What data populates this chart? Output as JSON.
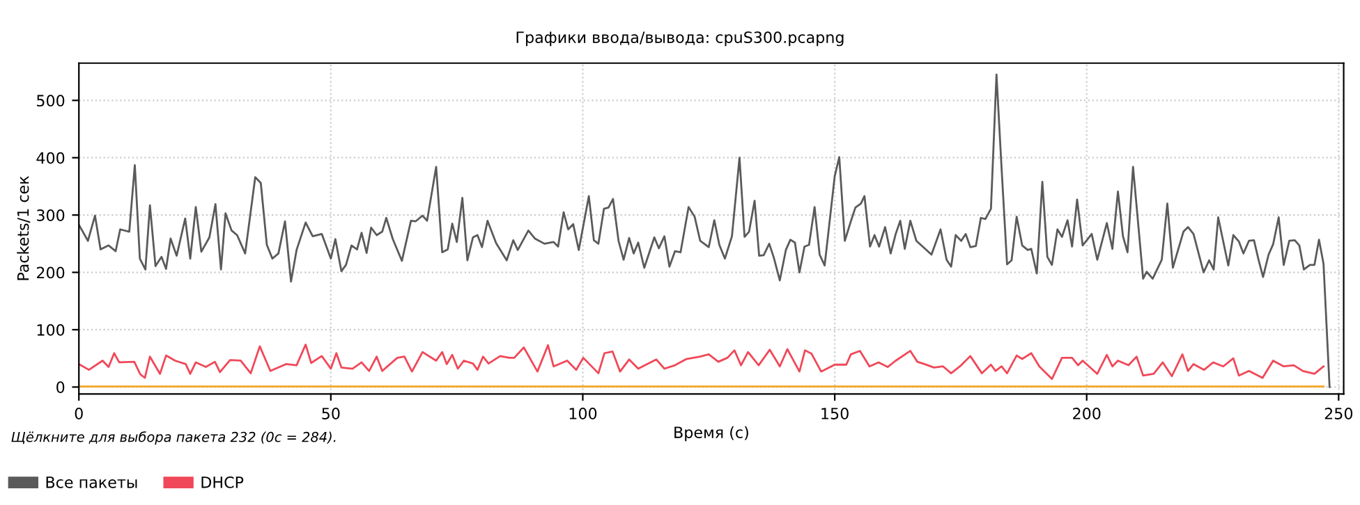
{
  "chart_data": {
    "type": "line",
    "title": "Графики ввода/вывода: cpuS300.pcapng",
    "xlabel": "Время (с)",
    "ylabel": "Packets/1 сек",
    "annotations": [
      "Щёлкните для выбора пакета 232 (0с = 284)."
    ],
    "xlim": [
      0,
      251
    ],
    "ylim": [
      -12,
      565
    ],
    "xticks": [
      0,
      50,
      100,
      150,
      200,
      250
    ],
    "yticks": [
      0,
      100,
      200,
      300,
      400,
      500
    ],
    "grid": true,
    "legend": "bottom",
    "line_style": "solid",
    "marker": "none",
    "series": [
      {
        "name": "Все пакеты",
        "color": "#5a5a5a",
        "x": [
          0,
          1.8,
          3.2,
          4.3,
          5.9,
          7.3,
          8.2,
          10,
          11.1,
          12.1,
          13.2,
          14.1,
          15.2,
          16.4,
          17.3,
          18.2,
          19.4,
          21.1,
          22.1,
          23.2,
          24.3,
          25.9,
          27.1,
          28.2,
          29.1,
          30.3,
          31.4,
          33,
          35,
          36.1,
          37.3,
          38.4,
          39.6,
          40.9,
          42.1,
          43.2,
          45,
          46.4,
          48.2,
          50,
          50.9,
          52.1,
          53,
          54.1,
          55.2,
          56.1,
          57.1,
          58,
          59.1,
          60.2,
          61,
          62.3,
          64.1,
          65.9,
          66.8,
          68.2,
          69.1,
          70.9,
          72.1,
          73.2,
          74.1,
          75,
          76.1,
          77.1,
          78.2,
          79.1,
          80,
          81.1,
          82.8,
          84.9,
          86.2,
          87.1,
          89.2,
          90.5,
          92.4,
          94.2,
          95.1,
          96.2,
          97.1,
          98.1,
          99.2,
          101.2,
          102.2,
          103.1,
          104.2,
          105.1,
          106,
          107.1,
          108.1,
          109.2,
          110.1,
          111,
          112.2,
          114.2,
          115.1,
          116.2,
          117.2,
          118.3,
          119.4,
          121,
          122.2,
          123.3,
          125,
          126.1,
          127.1,
          128.2,
          129.6,
          131.1,
          132.1,
          133,
          134.1,
          135,
          135.9,
          137,
          137.9,
          139.1,
          140.3,
          141.2,
          142.1,
          143,
          144,
          144.9,
          146,
          147,
          148,
          150,
          150.9,
          152,
          153.2,
          154.1,
          155.2,
          155.9,
          157,
          157.9,
          158.8,
          160,
          161.1,
          162.1,
          163,
          163.9,
          165,
          166.2,
          169.2,
          171,
          172.2,
          173.1,
          174,
          175.1,
          176,
          176.9,
          178,
          179,
          179.9,
          181,
          182.1,
          183.1,
          184.2,
          185.1,
          186.1,
          187.2,
          188.3,
          189,
          190.1,
          191.2,
          192.2,
          193.1,
          194.2,
          195.1,
          196.2,
          197.1,
          198.1,
          199.2,
          201,
          202.1,
          204,
          205.1,
          206.2,
          207.2,
          208.1,
          209.2,
          211.2,
          211.9,
          213.1,
          214.9,
          216,
          217.1,
          219.2,
          220.1,
          221.2,
          223.2,
          224.3,
          225.2,
          226.1,
          228.1,
          229.1,
          230.2,
          231.1,
          232.2,
          233.2,
          234.1,
          235,
          236.1,
          237,
          238.1,
          239.1,
          240.2,
          241.3,
          242.2,
          243.1,
          244.3,
          245.2,
          246.1,
          247,
          248.2
        ],
        "values": [
          283,
          255,
          299,
          240,
          247,
          237,
          275,
          271,
          387,
          224,
          205,
          317,
          211,
          227,
          206,
          259,
          229,
          294,
          224,
          314,
          236,
          261,
          319,
          205,
          303,
          273,
          265,
          233,
          366,
          356,
          248,
          224,
          233,
          289,
          184,
          239,
          287,
          263,
          267,
          224,
          258,
          202,
          213,
          247,
          240,
          269,
          234,
          278,
          265,
          271,
          295,
          258,
          220,
          290,
          289,
          299,
          290,
          384,
          235,
          240,
          285,
          253,
          330,
          221,
          261,
          265,
          244,
          290,
          251,
          221,
          256,
          239,
          273,
          259,
          250,
          253,
          245,
          305,
          275,
          284,
          239,
          333,
          256,
          250,
          311,
          313,
          328,
          255,
          222,
          260,
          233,
          252,
          208,
          261,
          242,
          263,
          210,
          237,
          235,
          314,
          297,
          255,
          244,
          291,
          248,
          224,
          263,
          400,
          262,
          271,
          325,
          229,
          230,
          250,
          226,
          186,
          239,
          257,
          252,
          200,
          245,
          248,
          314,
          231,
          212,
          368,
          401,
          255,
          289,
          313,
          320,
          333,
          245,
          265,
          245,
          279,
          233,
          267,
          290,
          241,
          290,
          255,
          231,
          275,
          222,
          210,
          265,
          255,
          267,
          244,
          246,
          295,
          293,
          311,
          545,
          383,
          214,
          221,
          297,
          247,
          239,
          241,
          198,
          358,
          227,
          213,
          275,
          262,
          291,
          245,
          327,
          247,
          267,
          222,
          286,
          241,
          341,
          263,
          235,
          384,
          189,
          201,
          189,
          222,
          320,
          208,
          271,
          279,
          267,
          200,
          221,
          205,
          296,
          212,
          265,
          254,
          233,
          255,
          256,
          222,
          192,
          231,
          249,
          296,
          213,
          255,
          256,
          247,
          205,
          213,
          213,
          257,
          215,
          0
        ]
      },
      {
        "name": "DHCP",
        "color": "#f04858",
        "x": [
          0,
          2,
          4.7,
          5.9,
          7,
          8,
          11,
          12.2,
          13.1,
          14.1,
          16.1,
          17.3,
          19.1,
          21.2,
          22.1,
          23.2,
          25.2,
          27,
          28,
          30,
          32.1,
          34.1,
          35.9,
          38,
          41.1,
          43.2,
          45,
          46.1,
          48.2,
          50,
          51.1,
          52.1,
          54.3,
          56.1,
          57.6,
          59.1,
          60.2,
          63.2,
          64.6,
          66.1,
          68.2,
          70.9,
          72.1,
          73,
          74.1,
          75.2,
          76.4,
          78.2,
          79.1,
          80.2,
          81.3,
          83.6,
          85.4,
          86.4,
          88.3,
          91,
          93.1,
          94.2,
          96.9,
          98.7,
          100.1,
          103.1,
          104.3,
          105.9,
          107.4,
          109.2,
          111,
          114.6,
          116.2,
          118.3,
          120.6,
          123.3,
          125,
          126.9,
          128.7,
          130.1,
          131.4,
          132.8,
          134.9,
          137.1,
          139.1,
          140.6,
          143,
          144.1,
          145.4,
          147.3,
          150,
          152.3,
          153.2,
          155,
          156.9,
          158.7,
          160.5,
          162.1,
          165,
          166.4,
          167.8,
          169.7,
          171.5,
          173.1,
          175.1,
          176.9,
          179.2,
          181,
          181.9,
          183.1,
          184.2,
          186.1,
          187.2,
          189,
          190.6,
          193.1,
          195.1,
          197.1,
          198.3,
          199.2,
          202.1,
          204,
          205.1,
          206.2,
          208.3,
          209.9,
          211.2,
          213.3,
          215.1,
          216.9,
          219,
          220.1,
          221.2,
          223.3,
          225.1,
          227.1,
          229.1,
          230.2,
          232.2,
          234.9,
          237,
          239.1,
          241.1,
          242.9,
          245.2,
          247
        ],
        "values": [
          40,
          30,
          46,
          35,
          59,
          43,
          44,
          22,
          16,
          53,
          23,
          55,
          46,
          40,
          23,
          43,
          35,
          44,
          26,
          47,
          46,
          24,
          71,
          28,
          40,
          38,
          74,
          42,
          54,
          32,
          59,
          34,
          32,
          43,
          28,
          53,
          28,
          51,
          53,
          27,
          61,
          46,
          61,
          40,
          56,
          32,
          46,
          41,
          30,
          53,
          41,
          54,
          51,
          51,
          69,
          27,
          73,
          36,
          46,
          30,
          51,
          24,
          59,
          62,
          27,
          48,
          32,
          48,
          32,
          38,
          49,
          53,
          57,
          44,
          51,
          64,
          38,
          61,
          38,
          65,
          36,
          66,
          27,
          64,
          58,
          27,
          39,
          39,
          57,
          63,
          36,
          43,
          35,
          46,
          63,
          44,
          40,
          34,
          36,
          24,
          38,
          54,
          24,
          39,
          28,
          36,
          24,
          55,
          49,
          59,
          36,
          14,
          51,
          51,
          38,
          46,
          23,
          56,
          36,
          46,
          38,
          53,
          20,
          23,
          43,
          19,
          57,
          28,
          40,
          30,
          43,
          36,
          50,
          20,
          28,
          16,
          46,
          36,
          38,
          28,
          23,
          36
        ]
      },
      {
        "color": "#f5a623",
        "x": [
          0,
          247
        ],
        "values": [
          1,
          1
        ]
      }
    ]
  }
}
